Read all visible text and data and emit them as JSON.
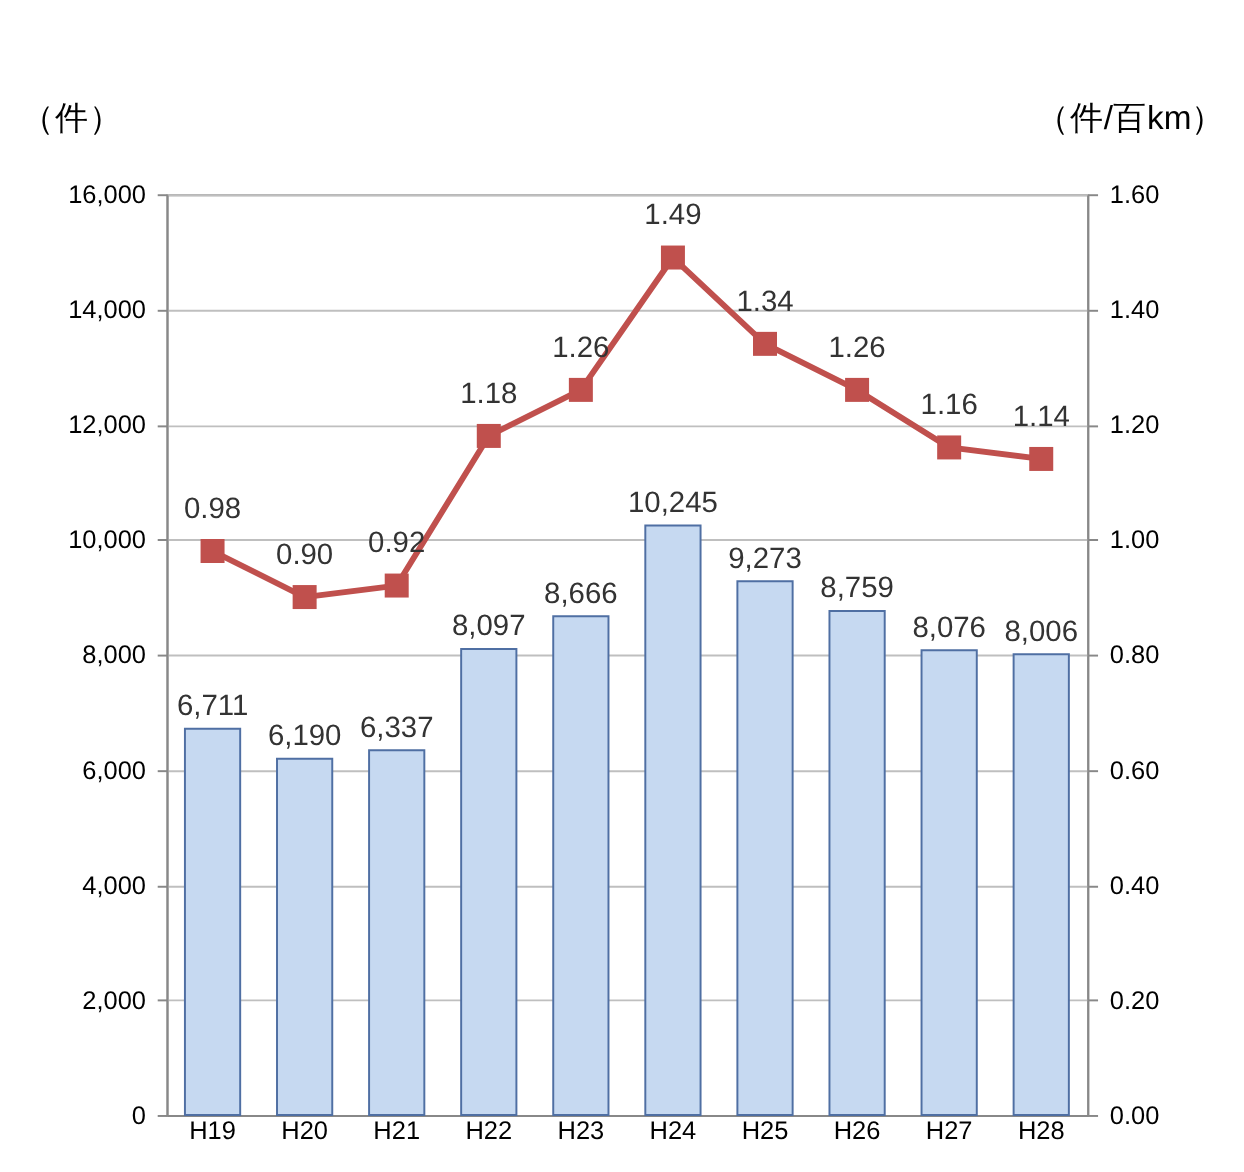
{
  "chart_data": {
    "type": "bar",
    "ylabel": "（件）",
    "y2label": "（件/百km）",
    "categories": [
      "H19",
      "H20",
      "H21",
      "H22",
      "H23",
      "H24",
      "H25",
      "H26",
      "H27",
      "H28"
    ],
    "series": [
      {
        "color": "#c6d9f1",
        "values": [
          6711,
          6190,
          6337,
          8097,
          8666,
          10245,
          9273,
          8759,
          8076,
          8006
        ],
        "value_labels": [
          "6,711",
          "6,190",
          "6,337",
          "8,097",
          "8,666",
          "10,245",
          "9,273",
          "8,759",
          "8,076",
          "8,006"
        ]
      },
      {
        "type": "line",
        "axis": "y2",
        "color": "#c0504d",
        "values": [
          0.98,
          0.9,
          0.92,
          1.18,
          1.26,
          1.49,
          1.34,
          1.26,
          1.16,
          1.14
        ],
        "value_labels": [
          "0.98",
          "0.90",
          "0.92",
          "1.18",
          "1.26",
          "1.49",
          "1.34",
          "1.26",
          "1.16",
          "1.14"
        ]
      }
    ],
    "ylim": [
      0,
      16000
    ],
    "yticks": [
      0,
      {
        "value": 2000,
        "label": "2,000"
      },
      {
        "value": 4000,
        "label": "4,000"
      },
      {
        "value": 6000,
        "label": "6,000"
      },
      {
        "value": 8000,
        "label": "8,000"
      },
      {
        "value": 10000,
        "label": "10,000"
      },
      {
        "value": 12000,
        "label": "12,000"
      },
      {
        "value": 14000,
        "label": "14,000"
      },
      {
        "value": 16000,
        "label": "16,000"
      }
    ],
    "y2lim": [
      0,
      1.6
    ],
    "y2ticks": [
      {
        "value": 0,
        "label": "0.00"
      },
      {
        "value": 0.2,
        "label": "0.20"
      },
      {
        "value": 0.4,
        "label": "0.40"
      },
      {
        "value": 0.6,
        "label": "0.60"
      },
      {
        "value": 0.8,
        "label": "0.80"
      },
      {
        "value": 1.0,
        "label": "1.00"
      },
      {
        "value": 1.2,
        "label": "1.20"
      },
      {
        "value": 1.4,
        "label": "1.40"
      },
      {
        "value": 1.6,
        "label": "1.60"
      }
    ],
    "grid": "y",
    "marker": "square",
    "line_style": "solid"
  }
}
